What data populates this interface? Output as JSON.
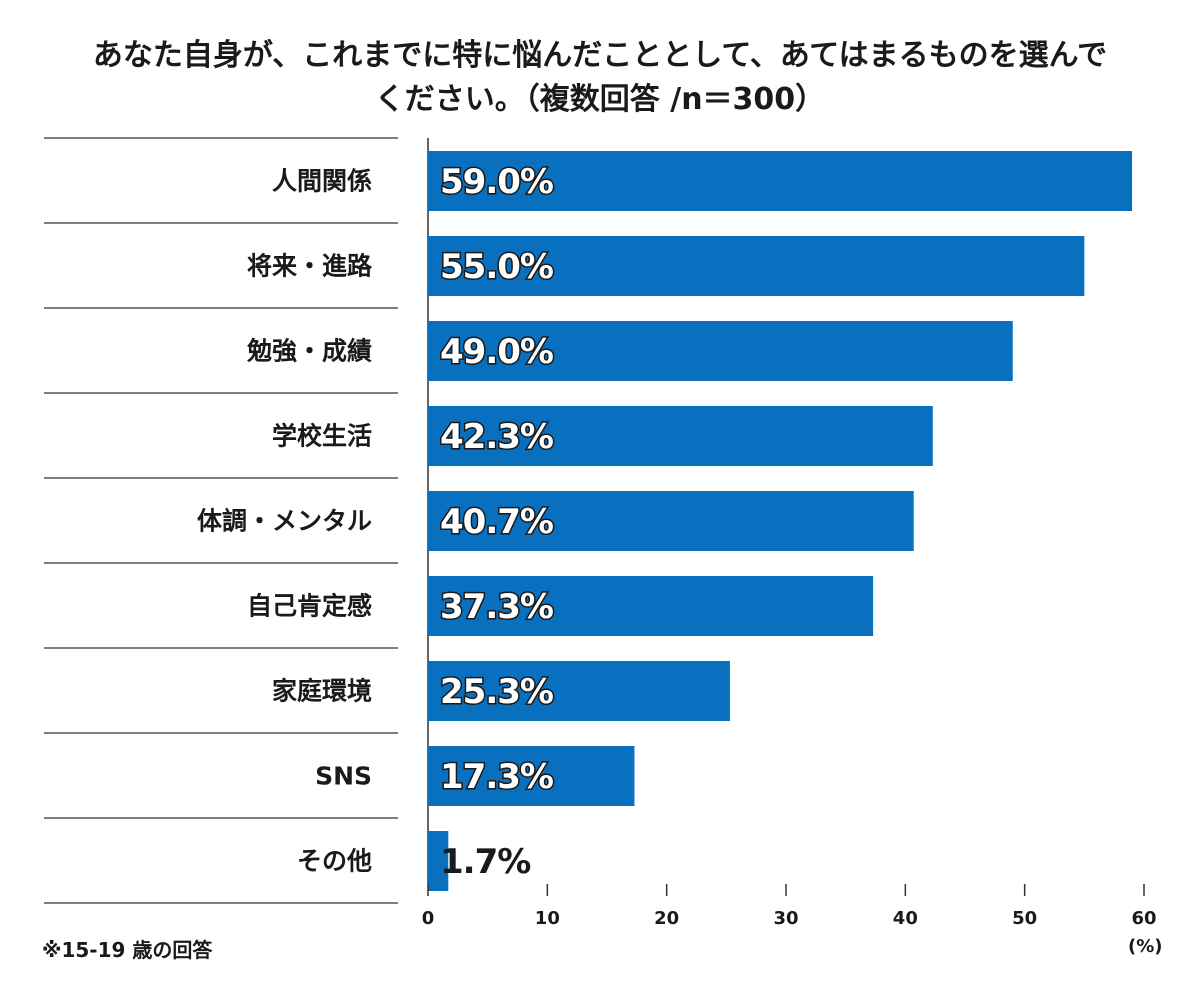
{
  "title_line1": "あなた自身が、これまでに特に悩んだこととして、あてはまるものを選んで",
  "title_line2": "ください。（複数回答 /n＝300）",
  "note": "※15-19 歳の回答",
  "unit_label": "(%)",
  "colors": {
    "bar": "#0870be",
    "text": "#1a1a1a",
    "rule": "#333333"
  },
  "chart_data": {
    "type": "bar",
    "orientation": "horizontal",
    "categories": [
      "人間関係",
      "将来・進路",
      "勉強・成績",
      "学校生活",
      "体調・メンタル",
      "自己肯定感",
      "家庭環境",
      "SNS",
      "その他"
    ],
    "values": [
      59.0,
      55.0,
      49.0,
      42.3,
      40.7,
      37.3,
      25.3,
      17.3,
      1.7
    ],
    "value_labels": [
      "59.0%",
      "55.0%",
      "49.0%",
      "42.3%",
      "40.7%",
      "37.3%",
      "25.3%",
      "17.3%",
      "1.7%"
    ],
    "xlim": [
      0,
      60
    ],
    "xticks": [
      0,
      10,
      20,
      30,
      40,
      50,
      60
    ],
    "xlabel": "(%)",
    "grid": false
  }
}
